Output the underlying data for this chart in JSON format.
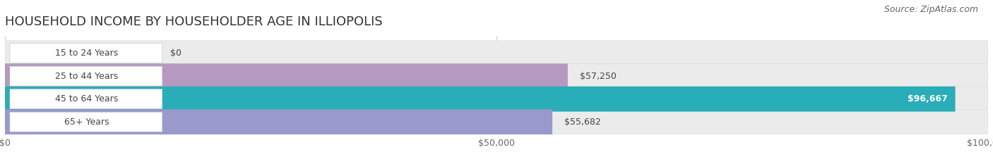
{
  "title": "HOUSEHOLD INCOME BY HOUSEHOLDER AGE IN ILLIOPOLIS",
  "source": "Source: ZipAtlas.com",
  "categories": [
    "15 to 24 Years",
    "25 to 44 Years",
    "45 to 64 Years",
    "65+ Years"
  ],
  "values": [
    0,
    57250,
    96667,
    55682
  ],
  "bar_colors": [
    "#aac4e0",
    "#b599c0",
    "#29adb8",
    "#9999cc"
  ],
  "max_value": 100000,
  "x_ticks": [
    0,
    50000,
    100000
  ],
  "x_tick_labels": [
    "$0",
    "$50,000",
    "$100,000"
  ],
  "label_values": [
    "$0",
    "$57,250",
    "$96,667",
    "$55,682"
  ],
  "background_color": "#ffffff",
  "bar_background_color": "#ebebeb",
  "bar_background_border": "#dddddd",
  "title_fontsize": 13,
  "source_fontsize": 9,
  "label_box_color": "#ffffff"
}
